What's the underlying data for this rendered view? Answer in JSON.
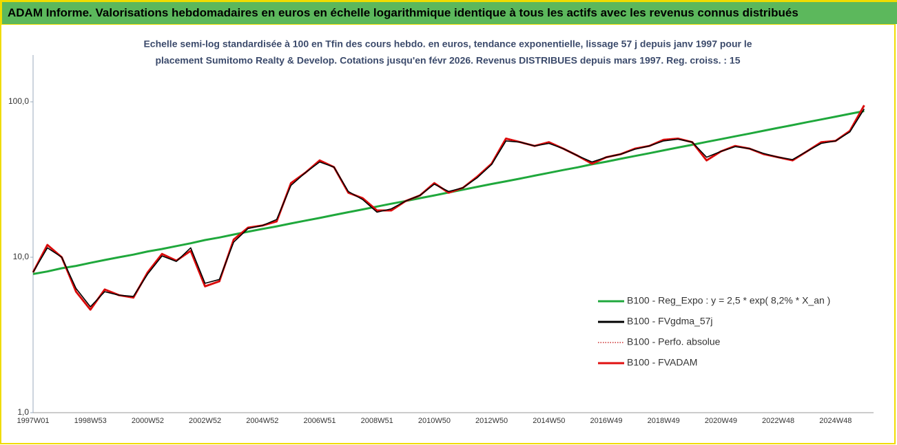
{
  "header": {
    "title": "ADAM Informe. Valorisations hebdomadaires en euros en échelle logarithmique identique à tous les actifs avec les revenus connus distribués"
  },
  "chart_data": {
    "type": "line",
    "title": [
      "Echelle semi-log standardisée à 100 en Tfin des cours hebdo. en euros, tendance exponentielle, lissage 57 j depuis janv 1997 pour le",
      "placement Sumitomo Realty & Develop. Cotations jusqu'en févr 2026. Revenus DISTRIBUES depuis mars 1997. Reg. croiss. : 15"
    ],
    "log_scale": true,
    "legend": "lower right",
    "ylim": [
      1,
      200
    ],
    "yticks": [
      {
        "value": 1,
        "label": "1,0"
      },
      {
        "value": 10,
        "label": "10,0"
      },
      {
        "value": 100,
        "label": "100,0"
      }
    ],
    "categories": [
      "1997W01",
      null,
      null,
      null,
      "1998W53",
      null,
      null,
      null,
      "2000W52",
      null,
      null,
      null,
      "2002W52",
      null,
      null,
      null,
      "2004W52",
      null,
      null,
      null,
      "2006W51",
      null,
      null,
      null,
      "2008W51",
      null,
      null,
      null,
      "2010W50",
      null,
      null,
      null,
      "2012W50",
      null,
      null,
      null,
      "2014W50",
      null,
      null,
      null,
      "2016W49",
      null,
      null,
      null,
      "2018W49",
      null,
      null,
      null,
      "2020W49",
      null,
      null,
      null,
      "2022W48",
      null,
      null,
      null,
      "2024W48",
      null,
      null
    ],
    "series": [
      {
        "name": "B100 - Reg_Expo : y = 2,5 * exp( 8,2% *  X_an )",
        "color": "#1fa83c",
        "style": "solid",
        "values": [
          7.8,
          8.1,
          8.5,
          8.8,
          9.2,
          9.6,
          10.0,
          10.4,
          10.9,
          11.3,
          11.8,
          12.3,
          12.9,
          13.4,
          14.0,
          14.6,
          15.2,
          15.8,
          16.5,
          17.2,
          17.9,
          18.7,
          19.5,
          20.3,
          21.2,
          22.1,
          23.0,
          24.0,
          25.0,
          26.1,
          27.2,
          28.4,
          29.6,
          30.8,
          32.1,
          33.5,
          34.9,
          36.4,
          37.9,
          39.6,
          41.2,
          43.0,
          44.8,
          46.7,
          48.7,
          50.8,
          52.9,
          55.2,
          57.5,
          60.0,
          62.5,
          65.2,
          68.0,
          70.8,
          73.9,
          77.0,
          80.3,
          83.7,
          87.2
        ]
      },
      {
        "name": "B100 - FVgdma_57j",
        "color": "#000000",
        "style": "solid",
        "values": [
          8,
          11.5,
          10,
          6.3,
          4.8,
          6,
          5.7,
          5.6,
          7.8,
          10.2,
          9.4,
          11.5,
          6.8,
          7.2,
          12.5,
          15.3,
          16,
          17.5,
          29,
          35,
          41,
          38,
          26.5,
          23.5,
          19.5,
          20.5,
          23,
          25,
          29.5,
          26.5,
          28,
          32.5,
          39.5,
          56,
          55,
          52,
          54,
          50,
          45,
          41,
          44,
          46,
          49.5,
          52,
          56,
          57.5,
          55,
          44,
          48,
          51.5,
          50,
          46.5,
          44,
          42.5,
          48,
          54,
          56,
          64,
          90
        ]
      },
      {
        "name": "B100 - Perfo. absolue",
        "color": "#c00000",
        "style": "dotted",
        "values": [
          8,
          12,
          10,
          6,
          4.6,
          6.2,
          5.7,
          5.5,
          8,
          10.5,
          9.5,
          11,
          6.5,
          7,
          13,
          15.5,
          16,
          17,
          30,
          35,
          42,
          38,
          26,
          24,
          20,
          20,
          23,
          25,
          30,
          26,
          28,
          33,
          40,
          58,
          55,
          52,
          55,
          50,
          45,
          40,
          44,
          46,
          50,
          52,
          57,
          58,
          55,
          42,
          48,
          52,
          50,
          46,
          44,
          42,
          48,
          55,
          56,
          65,
          95
        ]
      },
      {
        "name": "B100 - FVADAM",
        "color": "#e01010",
        "style": "solid",
        "values": [
          8,
          12,
          10,
          6,
          4.6,
          6.2,
          5.7,
          5.5,
          8,
          10.5,
          9.5,
          11,
          6.5,
          7,
          13,
          15.5,
          16,
          17,
          30,
          35,
          42,
          38,
          26,
          24,
          20,
          20,
          23,
          25,
          30,
          26,
          28,
          33,
          40,
          58,
          55,
          52,
          55,
          50,
          45,
          40,
          44,
          46,
          50,
          52,
          57,
          58,
          55,
          42,
          48,
          52,
          50,
          46,
          44,
          42,
          48,
          55,
          56,
          65,
          95
        ]
      }
    ]
  }
}
